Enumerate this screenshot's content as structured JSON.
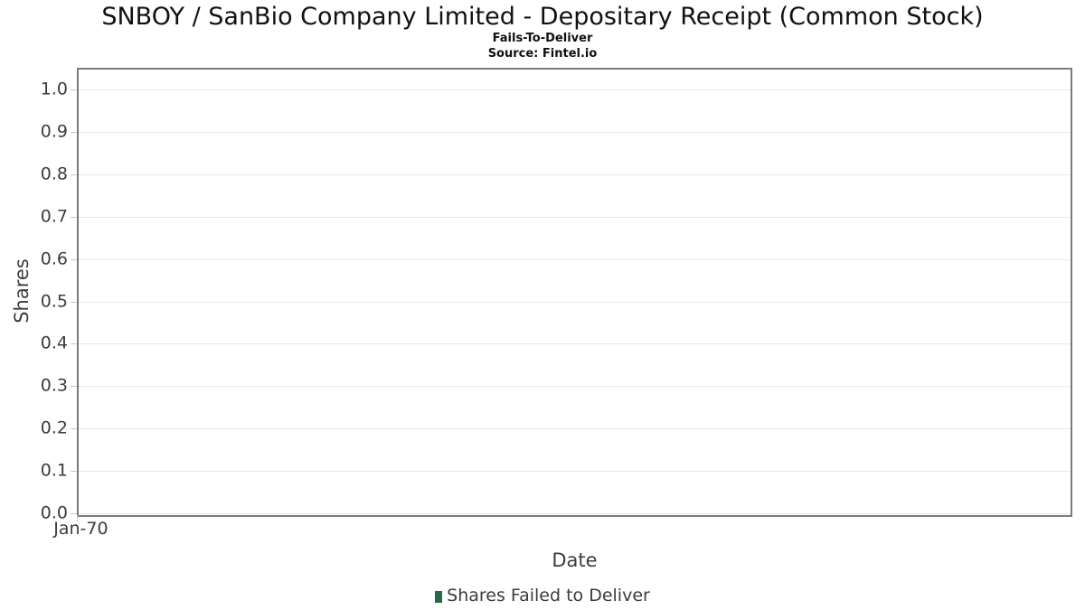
{
  "title": "SNBOY / SanBio Company Limited - Depositary Receipt (Common Stock)",
  "subtitle": "Fails-To-Deliver",
  "source": "Source: Fintel.io",
  "chart_data": {
    "type": "bar",
    "title": "SNBOY / SanBio Company Limited - Depositary Receipt (Common Stock)",
    "subtitle": "Fails-To-Deliver",
    "source": "Source: Fintel.io",
    "xlabel": "Date",
    "ylabel": "Shares",
    "x_ticks": [
      "Jan-70"
    ],
    "y_ticks": [
      "0.0",
      "0.1",
      "0.2",
      "0.3",
      "0.4",
      "0.5",
      "0.6",
      "0.7",
      "0.8",
      "0.9",
      "1.0"
    ],
    "ylim": [
      0.0,
      1.05
    ],
    "grid": true,
    "legend_position": "bottom",
    "series": [
      {
        "name": "Shares Failed to Deliver",
        "x": [],
        "values": []
      }
    ],
    "legend": [
      {
        "label": "Shares Failed to Deliver",
        "color": "#276949"
      }
    ]
  },
  "colors": {
    "legend_marker": "#276949",
    "axis_border": "#7b7b7b",
    "gridline": "#e8e8e8",
    "tick": "#c9c9c9",
    "axis_text": "#3c3c3c",
    "title_text": "#111111"
  }
}
